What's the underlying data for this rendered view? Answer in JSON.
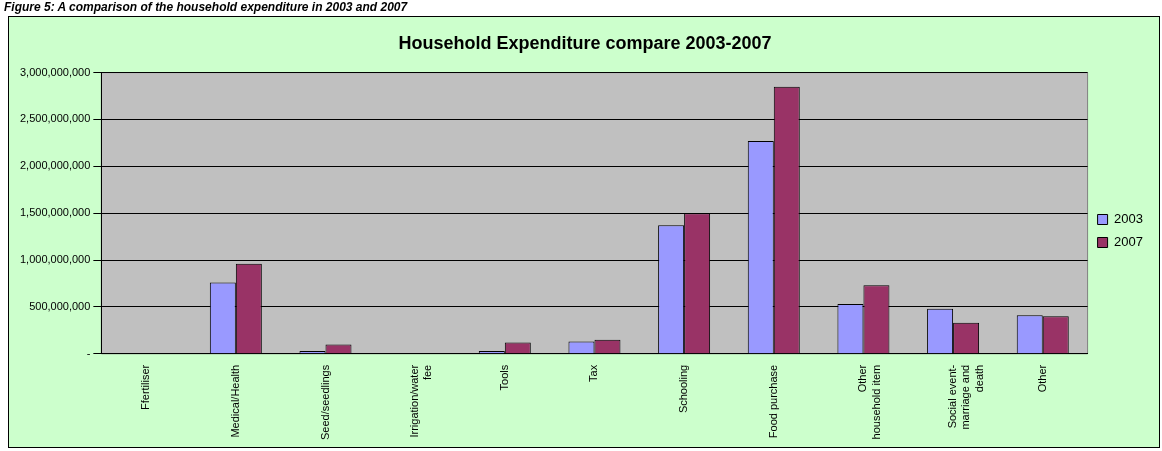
{
  "chart_data": {
    "type": "bar",
    "title": "Household Expenditure compare 2003-2007",
    "annotations": [
      "Figure 5: A comparison of the household expenditure in 2003 and 2007"
    ],
    "categories": [
      "Ffertiliser",
      "Medical/Health",
      "Seed/seedlings",
      "Irrigation/water fee",
      "Tools",
      "Tax",
      "Schooling",
      "Food purchase",
      "Other household item",
      "Social event-marriage and death",
      "Other"
    ],
    "series": [
      {
        "name": "2003",
        "color": "#9999ff",
        "values": [
          0,
          760000000,
          30000000,
          0,
          30000000,
          130000000,
          1370000000,
          2270000000,
          530000000,
          480000000,
          410000000
        ]
      },
      {
        "name": "2007",
        "color": "#993366",
        "values": [
          0,
          960000000,
          100000000,
          0,
          120000000,
          150000000,
          1500000000,
          2850000000,
          730000000,
          330000000,
          400000000
        ]
      }
    ],
    "ylim": [
      0,
      3000000000
    ],
    "yticks": [
      {
        "value": 0,
        "label": "-"
      },
      {
        "value": 500000000,
        "label": "500,000,000"
      },
      {
        "value": 1000000000,
        "label": "1,000,000,000"
      },
      {
        "value": 1500000000,
        "label": "1,500,000,000"
      },
      {
        "value": 2000000000,
        "label": "2,000,000,000"
      },
      {
        "value": 2500000000,
        "label": "2,500,000,000"
      },
      {
        "value": 3000000000,
        "label": "3,000,000,000"
      }
    ],
    "grid": "y",
    "legend": "right"
  }
}
